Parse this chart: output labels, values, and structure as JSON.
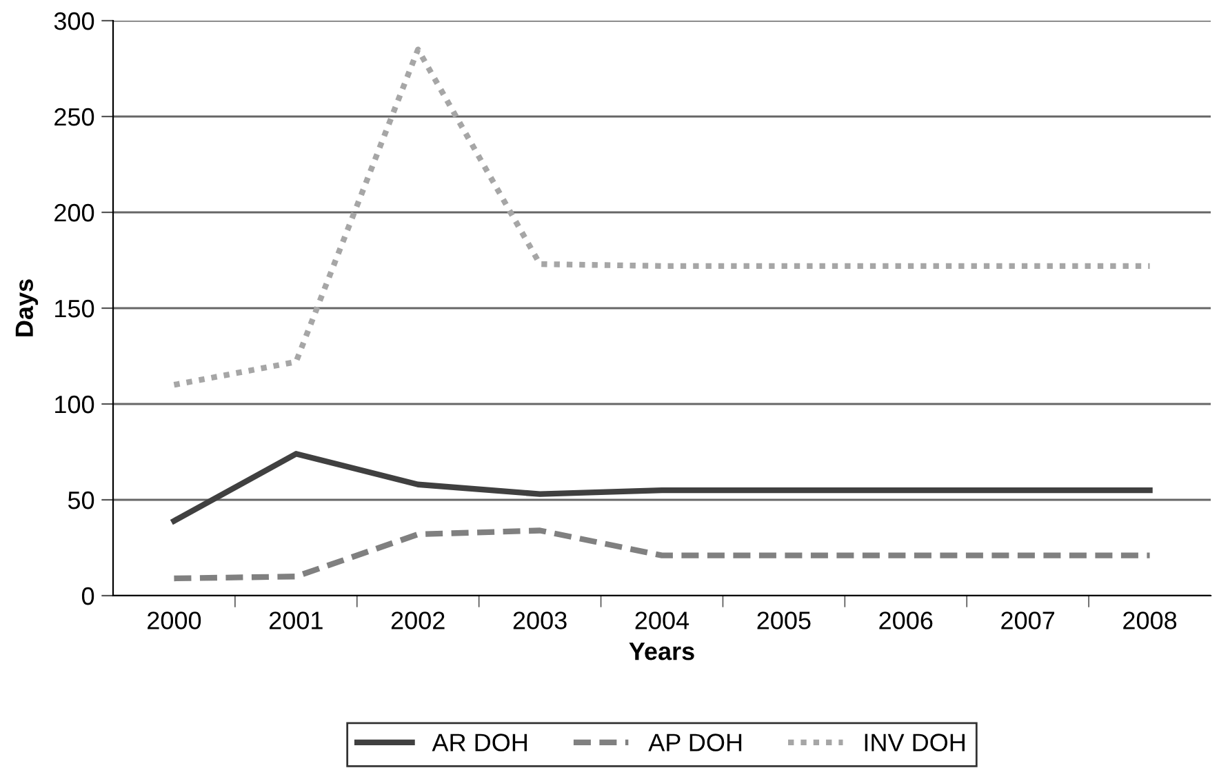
{
  "chart_data": {
    "type": "line",
    "xlabel": "Years",
    "ylabel": "Days",
    "categories": [
      "2000",
      "2001",
      "2002",
      "2003",
      "2004",
      "2005",
      "2006",
      "2007",
      "2008"
    ],
    "series": [
      {
        "name": "AR DOH",
        "color": "#404040",
        "line_style": "solid",
        "values": [
          39,
          74,
          58,
          53,
          55,
          55,
          55,
          55,
          55
        ]
      },
      {
        "name": "AP DOH",
        "color": "#808080",
        "line_style": "dashed",
        "values": [
          9,
          10,
          32,
          34,
          21,
          21,
          21,
          21,
          21
        ]
      },
      {
        "name": "INV DOH",
        "color": "#a6a6a6",
        "line_style": "dotted",
        "values": [
          110,
          122,
          285,
          173,
          172,
          172,
          172,
          172,
          172
        ]
      }
    ],
    "ylim": [
      0,
      300
    ],
    "yticks": [
      0,
      50,
      100,
      150,
      200,
      250,
      300
    ],
    "grid": "y",
    "legend": "bottom",
    "marker": "none"
  }
}
